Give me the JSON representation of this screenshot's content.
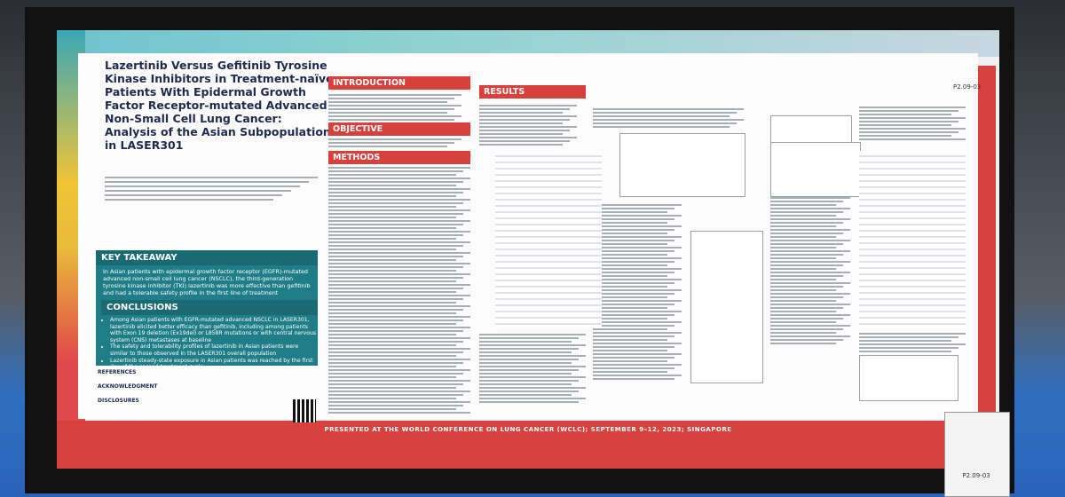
{
  "poster": {
    "title": "Lazertinib Versus Gefitinib Tyrosine Kinase Inhibitors in Treatment-naïve Patients With Epidermal Growth Factor Receptor-mutated Advanced Non-Small Cell Lung Cancer: Analysis of the Asian Subpopulation in LASER301",
    "poster_id": "P2.09-03",
    "sections": {
      "introduction": "INTRODUCTION",
      "objective": "OBJECTIVE",
      "methods": "METHODS",
      "results": "RESULTS"
    },
    "key_takeaway": {
      "heading": "KEY TAKEAWAY",
      "text": "In Asian patients with epidermal growth factor receptor (EGFR)-mutated advanced non-small cell lung cancer (NSCLC), the third-generation tyrosine kinase inhibitor (TKI) lazertinib was more effective than gefitinib and had a tolerable safety profile in the first line of treatment"
    },
    "conclusions": {
      "heading": "CONCLUSIONS",
      "bullets": [
        "Among Asian patients with EGFR-mutated advanced NSCLC in LASER301, lazertinib elicited better efficacy than gefitinib, including among patients with Exon 19 deletion (Ex19del) or L858R mutations or with central nervous system (CNS) metastases at baseline",
        "The safety and tolerability profiles of lazertinib in Asian patients were similar to those observed in the LASER301 overall population",
        "Lazertinib steady-state exposure in Asian patients was reached by the first day of the second treatment cycle"
      ]
    },
    "references": "REFERENCES",
    "acknowledgment": "ACKNOWLEDGMENT",
    "disclosures": "DISCLOSURES",
    "footer": "PRESENTED AT THE WORLD CONFERENCE ON LUNG CANCER (WCLC); SEPTEMBER 9–12, 2023; SINGAPORE"
  },
  "placard": {
    "poster_id": "P2.09-03"
  }
}
